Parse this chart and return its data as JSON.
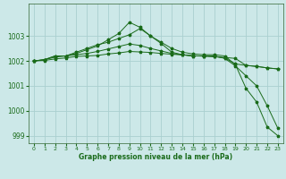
{
  "title": "Graphe pression niveau de la mer (hPa)",
  "bg_color": "#cce8e8",
  "grid_color": "#aad0d0",
  "line_color": "#1a6b1a",
  "spine_color": "#336633",
  "xlim": [
    -0.5,
    23.5
  ],
  "ylim": [
    998.7,
    1004.3
  ],
  "yticks": [
    999,
    1000,
    1001,
    1002,
    1003
  ],
  "xticks": [
    0,
    1,
    2,
    3,
    4,
    5,
    6,
    7,
    8,
    9,
    10,
    11,
    12,
    13,
    14,
    15,
    16,
    17,
    18,
    19,
    20,
    21,
    22,
    23
  ],
  "series": [
    [
      1002.0,
      1002.05,
      1002.2,
      1002.2,
      1002.35,
      1002.5,
      1002.65,
      1002.75,
      1002.9,
      1003.05,
      1003.3,
      1003.0,
      1002.7,
      1002.35,
      1002.25,
      1002.2,
      1002.2,
      1002.2,
      1002.1,
      1001.8,
      1001.4,
      1001.0,
      1000.2,
      999.3
    ],
    [
      1002.0,
      1002.05,
      1002.2,
      1002.2,
      1002.3,
      1002.45,
      1002.6,
      1002.85,
      1003.1,
      1003.55,
      1003.35,
      1003.0,
      1002.75,
      1002.5,
      1002.35,
      1002.28,
      1002.25,
      1002.25,
      1002.2,
      1001.85,
      1000.9,
      1000.35,
      999.35,
      999.0
    ],
    [
      1002.0,
      1002.05,
      1002.15,
      1002.2,
      1002.25,
      1002.3,
      1002.38,
      1002.48,
      1002.58,
      1002.68,
      1002.62,
      1002.5,
      1002.4,
      1002.3,
      1002.25,
      1002.2,
      1002.2,
      1002.18,
      1002.12,
      1001.88,
      1001.82,
      1001.78,
      1001.72,
      1001.68
    ],
    [
      1002.0,
      1002.02,
      1002.08,
      1002.12,
      1002.18,
      1002.2,
      1002.22,
      1002.28,
      1002.32,
      1002.38,
      1002.36,
      1002.34,
      1002.3,
      1002.27,
      1002.24,
      1002.21,
      1002.19,
      1002.17,
      1002.14,
      1002.1,
      1001.82,
      1001.78,
      1001.72,
      1001.68
    ]
  ]
}
